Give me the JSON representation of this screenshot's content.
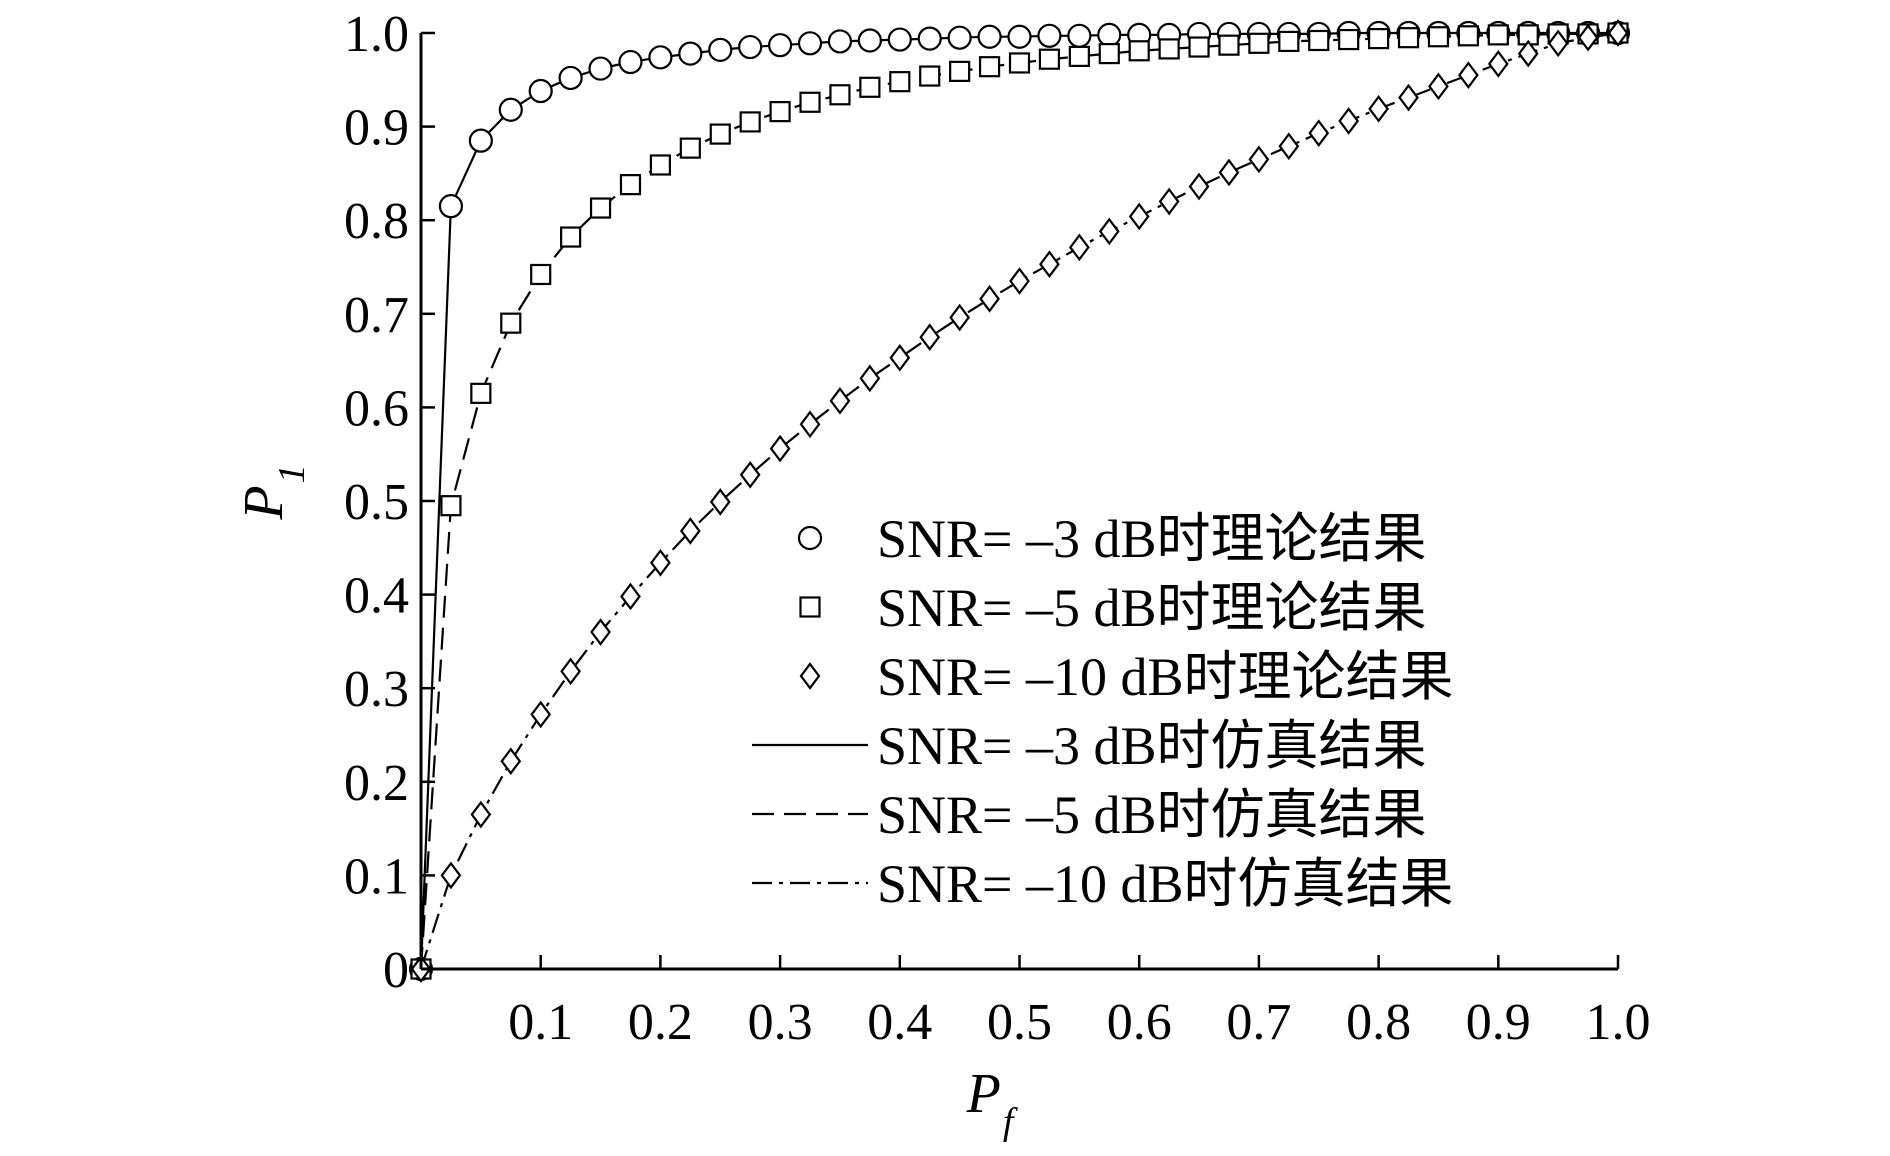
{
  "chart_data": {
    "type": "line",
    "xlabel": "P",
    "xlabel_sub": "f",
    "ylabel": "P",
    "ylabel_sub": "1",
    "xlim": [
      0,
      1.0
    ],
    "ylim": [
      0,
      1.0
    ],
    "x_ticks": [
      0.1,
      0.2,
      0.3,
      0.4,
      0.5,
      0.6,
      0.7,
      0.8,
      0.9,
      1.0
    ],
    "x_tick_labels": [
      "0.1",
      "0.2",
      "0.3",
      "0.4",
      "0.5",
      "0.6",
      "0.7",
      "0.8",
      "0.9",
      "1.0"
    ],
    "y_ticks": [
      0,
      0.1,
      0.2,
      0.3,
      0.4,
      0.5,
      0.6,
      0.7,
      0.8,
      0.9,
      1.0
    ],
    "y_tick_labels": [
      "0",
      "0.1",
      "0.2",
      "0.3",
      "0.4",
      "0.5",
      "0.6",
      "0.7",
      "0.8",
      "0.9",
      "1.0"
    ],
    "grid": false,
    "legend_position": "center-right",
    "x": [
      0,
      0.025,
      0.05,
      0.075,
      0.1,
      0.125,
      0.15,
      0.175,
      0.2,
      0.225,
      0.25,
      0.275,
      0.3,
      0.325,
      0.35,
      0.375,
      0.4,
      0.425,
      0.45,
      0.475,
      0.5,
      0.525,
      0.55,
      0.575,
      0.6,
      0.625,
      0.65,
      0.675,
      0.7,
      0.725,
      0.75,
      0.775,
      0.8,
      0.825,
      0.85,
      0.875,
      0.9,
      0.925,
      0.95,
      0.975,
      1.0
    ],
    "series": [
      {
        "name": "SNR= –3 dB时理论结果",
        "style": "marker",
        "marker": "circle",
        "values": [
          0,
          0.815,
          0.885,
          0.918,
          0.938,
          0.952,
          0.962,
          0.969,
          0.974,
          0.978,
          0.982,
          0.985,
          0.987,
          0.989,
          0.991,
          0.992,
          0.993,
          0.994,
          0.995,
          0.996,
          0.996,
          0.997,
          0.997,
          0.998,
          0.998,
          0.998,
          0.999,
          0.999,
          0.999,
          0.999,
          0.999,
          1.0,
          1.0,
          1.0,
          1.0,
          1.0,
          1.0,
          1.0,
          1.0,
          1.0,
          1.0
        ]
      },
      {
        "name": "SNR= –5 dB时理论结果",
        "style": "marker",
        "marker": "square",
        "values": [
          0,
          0.495,
          0.615,
          0.69,
          0.742,
          0.782,
          0.813,
          0.838,
          0.859,
          0.877,
          0.892,
          0.905,
          0.916,
          0.926,
          0.934,
          0.942,
          0.948,
          0.954,
          0.959,
          0.964,
          0.968,
          0.972,
          0.975,
          0.978,
          0.981,
          0.983,
          0.985,
          0.987,
          0.989,
          0.991,
          0.992,
          0.993,
          0.994,
          0.995,
          0.996,
          0.997,
          0.998,
          0.998,
          0.999,
          0.999,
          1.0
        ]
      },
      {
        "name": "SNR= –10 dB时理论结果",
        "style": "marker",
        "marker": "diamond",
        "values": [
          0,
          0.1,
          0.165,
          0.222,
          0.272,
          0.318,
          0.36,
          0.398,
          0.434,
          0.468,
          0.499,
          0.528,
          0.556,
          0.582,
          0.607,
          0.631,
          0.653,
          0.675,
          0.696,
          0.716,
          0.735,
          0.753,
          0.771,
          0.788,
          0.804,
          0.82,
          0.836,
          0.851,
          0.865,
          0.879,
          0.893,
          0.906,
          0.919,
          0.931,
          0.943,
          0.955,
          0.967,
          0.978,
          0.989,
          0.995,
          1.0
        ]
      },
      {
        "name": "SNR= –3 dB时仿真结果",
        "style": "solid",
        "values": [
          0,
          0.815,
          0.885,
          0.918,
          0.938,
          0.952,
          0.962,
          0.969,
          0.974,
          0.978,
          0.982,
          0.985,
          0.987,
          0.989,
          0.991,
          0.992,
          0.993,
          0.994,
          0.995,
          0.996,
          0.996,
          0.997,
          0.997,
          0.998,
          0.998,
          0.998,
          0.999,
          0.999,
          0.999,
          0.999,
          0.999,
          1.0,
          1.0,
          1.0,
          1.0,
          1.0,
          1.0,
          1.0,
          1.0,
          1.0,
          1.0
        ]
      },
      {
        "name": "SNR= –5 dB时仿真结果",
        "style": "dashed",
        "values": [
          0,
          0.495,
          0.615,
          0.69,
          0.742,
          0.782,
          0.813,
          0.838,
          0.859,
          0.877,
          0.892,
          0.905,
          0.916,
          0.926,
          0.934,
          0.942,
          0.948,
          0.954,
          0.959,
          0.964,
          0.968,
          0.972,
          0.975,
          0.978,
          0.981,
          0.983,
          0.985,
          0.987,
          0.989,
          0.991,
          0.992,
          0.993,
          0.994,
          0.995,
          0.996,
          0.997,
          0.998,
          0.998,
          0.999,
          0.999,
          1.0
        ]
      },
      {
        "name": "SNR= –10 dB时仿真结果",
        "style": "dashdot",
        "values": [
          0,
          0.1,
          0.165,
          0.222,
          0.272,
          0.318,
          0.36,
          0.398,
          0.434,
          0.468,
          0.499,
          0.528,
          0.556,
          0.582,
          0.607,
          0.631,
          0.653,
          0.675,
          0.696,
          0.716,
          0.735,
          0.753,
          0.771,
          0.788,
          0.804,
          0.82,
          0.836,
          0.851,
          0.865,
          0.879,
          0.893,
          0.906,
          0.919,
          0.931,
          0.943,
          0.955,
          0.967,
          0.978,
          0.989,
          0.995,
          1.0
        ]
      }
    ]
  }
}
